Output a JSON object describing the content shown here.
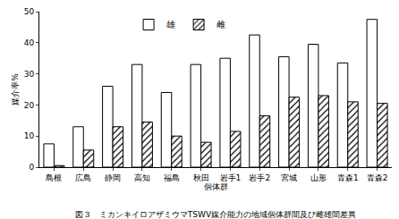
{
  "chart_data": {
    "type": "bar",
    "title": "図３　ミカンキイロアザミウマTSWV媒介能力の地域個体群間及び雌雄間差異",
    "x_label": "個体群",
    "y_label": "媒介率%",
    "categories": [
      "島根",
      "広島",
      "静岡",
      "高知",
      "福島",
      "秋田",
      "岩手1",
      "岩手2",
      "宮城",
      "山形",
      "青森1",
      "青森2"
    ],
    "series": [
      {
        "name": "雄",
        "color": "#ffffff",
        "marker": "solid",
        "values": [
          7.5,
          13,
          26,
          33,
          24,
          33,
          35,
          42.5,
          35.5,
          39.5,
          33.5,
          47.5
        ]
      },
      {
        "name": "雌",
        "color": "#ffffff",
        "marker": "hatch",
        "values": [
          0.5,
          5.5,
          13,
          14.5,
          10,
          8,
          11.5,
          16.5,
          22.5,
          23,
          21,
          20.5
        ]
      }
    ],
    "ylim": [
      0,
      50
    ],
    "yticks": [
      0,
      10,
      20,
      30,
      40,
      50
    ],
    "grid": false,
    "legend": "top"
  }
}
